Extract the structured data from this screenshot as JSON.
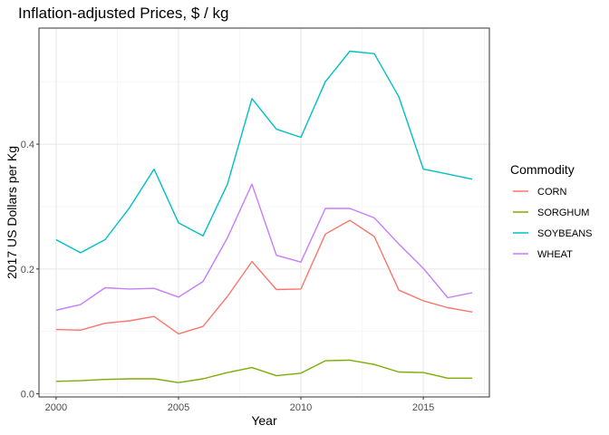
{
  "chart_data": {
    "type": "line",
    "title": "Inflation-adjusted Prices, $ / kg",
    "xlabel": "Year",
    "ylabel": "2017 US Dollars per Kg",
    "xlim": [
      1999.3,
      2017.7
    ],
    "ylim": [
      -0.005,
      0.586
    ],
    "x_ticks": [
      2000,
      2005,
      2010,
      2015
    ],
    "x_tick_labels": [
      "2000",
      "2005",
      "2010",
      "2015"
    ],
    "y_ticks": [
      0.0,
      0.2,
      0.4
    ],
    "y_tick_labels": [
      "0.0",
      "0.2",
      "0.4"
    ],
    "grid": true,
    "legend": {
      "title": "Commodity",
      "position": "right"
    },
    "x": [
      2000,
      2001,
      2002,
      2003,
      2004,
      2005,
      2006,
      2007,
      2008,
      2009,
      2010,
      2011,
      2012,
      2013,
      2014,
      2015,
      2016,
      2017
    ],
    "series": [
      {
        "name": "CORN",
        "color": "#F8766D",
        "values": [
          0.103,
          0.102,
          0.113,
          0.117,
          0.124,
          0.096,
          0.108,
          0.156,
          0.212,
          0.167,
          0.168,
          0.256,
          0.278,
          0.252,
          0.166,
          0.149,
          0.138,
          0.131
        ]
      },
      {
        "name": "SORGHUM",
        "color": "#7CAE00",
        "values": [
          0.02,
          0.021,
          0.023,
          0.024,
          0.024,
          0.018,
          0.024,
          0.034,
          0.042,
          0.029,
          0.033,
          0.053,
          0.054,
          0.047,
          0.035,
          0.034,
          0.025,
          0.025
        ]
      },
      {
        "name": "SOYBEANS",
        "color": "#00BFC4",
        "values": [
          0.247,
          0.226,
          0.247,
          0.298,
          0.36,
          0.274,
          0.253,
          0.336,
          0.473,
          0.424,
          0.411,
          0.5,
          0.549,
          0.545,
          0.476,
          0.36,
          0.352,
          0.344
        ]
      },
      {
        "name": "WHEAT",
        "color": "#C77CFF",
        "values": [
          0.134,
          0.143,
          0.17,
          0.168,
          0.169,
          0.155,
          0.18,
          0.25,
          0.336,
          0.222,
          0.211,
          0.297,
          0.297,
          0.282,
          0.24,
          0.201,
          0.154,
          0.162
        ]
      }
    ]
  }
}
